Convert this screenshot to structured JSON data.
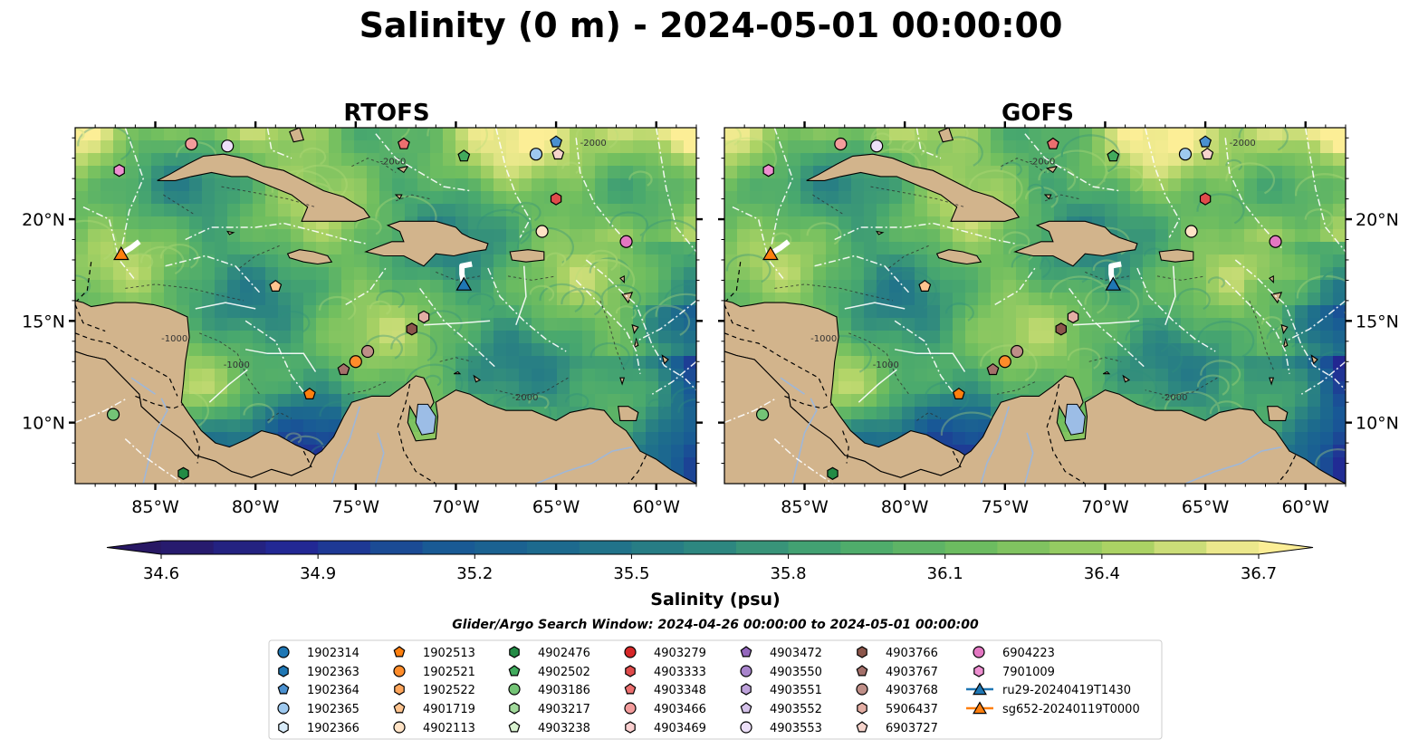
{
  "chart_data": {
    "type": "heatmap",
    "title": "Salinity (0 m) - 2024-05-01 00:00:00",
    "panels": [
      {
        "title": "RTOFS",
        "tone": "rtofs"
      },
      {
        "title": "GOFS",
        "tone": "gofs"
      }
    ],
    "xlim": [
      -89,
      -58
    ],
    "ylim": [
      7,
      24.5
    ],
    "x_ticks": [
      -85,
      -80,
      -75,
      -70,
      -65,
      -60
    ],
    "x_tick_labels": [
      "85°W",
      "80°W",
      "75°W",
      "70°W",
      "65°W",
      "60°W"
    ],
    "y_ticks": [
      10,
      15,
      20
    ],
    "y_tick_labels": [
      "10°N",
      "15°N",
      "20°N"
    ],
    "colorbar": {
      "label": "Salinity (psu)",
      "min": 34.6,
      "max": 36.7,
      "step": 0.1,
      "ticks": [
        34.6,
        34.9,
        35.2,
        35.5,
        35.8,
        36.1,
        36.4,
        36.7
      ],
      "tick_labels": [
        "34.6",
        "34.9",
        "35.2",
        "35.5",
        "35.8",
        "36.1",
        "36.4",
        "36.7"
      ],
      "extend": "both"
    },
    "search_window": "Glider/Argo Search Window: 2024-04-26 00:00:00 to 2024-05-01 00:00:00",
    "floats": [
      {
        "id": "1902314",
        "color": "#1f77b4",
        "marker": "circle"
      },
      {
        "id": "1902363",
        "color": "#1f77b4",
        "marker": "hexagon"
      },
      {
        "id": "1902364",
        "color": "#4a90d0",
        "marker": "pentagon",
        "lon": -65.0,
        "lat": 23.8
      },
      {
        "id": "1902365",
        "color": "#9ec9ef",
        "marker": "circle",
        "lon": -66.0,
        "lat": 23.2
      },
      {
        "id": "1902366",
        "color": "#d9ecfa",
        "marker": "hexagon"
      },
      {
        "id": "1902513",
        "color": "#ff7f0e",
        "marker": "pentagon",
        "lon": -77.3,
        "lat": 11.4
      },
      {
        "id": "1902521",
        "color": "#ff8c2a",
        "marker": "circle",
        "lon": -75.0,
        "lat": 13.0
      },
      {
        "id": "1902522",
        "color": "#ffa65c",
        "marker": "hexagon"
      },
      {
        "id": "4901719",
        "color": "#ffc48f",
        "marker": "pentagon",
        "lon": -79.0,
        "lat": 16.7
      },
      {
        "id": "4902113",
        "color": "#ffe3c6",
        "marker": "circle",
        "lon": -65.7,
        "lat": 19.4
      },
      {
        "id": "4902476",
        "color": "#238b45",
        "marker": "hexagon",
        "lon": -83.6,
        "lat": 7.5
      },
      {
        "id": "4902502",
        "color": "#41ab5d",
        "marker": "pentagon",
        "lon": -69.6,
        "lat": 23.1
      },
      {
        "id": "4903186",
        "color": "#74c476",
        "marker": "circle",
        "lon": -87.1,
        "lat": 10.4
      },
      {
        "id": "4903217",
        "color": "#a1d99b",
        "marker": "hexagon"
      },
      {
        "id": "4903238",
        "color": "#d9f2d0",
        "marker": "pentagon"
      },
      {
        "id": "4903279",
        "color": "#d62728",
        "marker": "circle"
      },
      {
        "id": "4903333",
        "color": "#e04b4b",
        "marker": "hexagon",
        "lon": -65.0,
        "lat": 21.0
      },
      {
        "id": "4903348",
        "color": "#ec6f6f",
        "marker": "pentagon",
        "lon": -72.6,
        "lat": 23.7
      },
      {
        "id": "4903466",
        "color": "#f39c9c",
        "marker": "circle",
        "lon": -83.2,
        "lat": 23.7
      },
      {
        "id": "4903469",
        "color": "#fbd0d0",
        "marker": "hexagon"
      },
      {
        "id": "4903472",
        "color": "#9467bd",
        "marker": "pentagon"
      },
      {
        "id": "4903550",
        "color": "#a884cc",
        "marker": "circle"
      },
      {
        "id": "4903551",
        "color": "#bea2db",
        "marker": "hexagon"
      },
      {
        "id": "4903552",
        "color": "#d5c2ea",
        "marker": "pentagon"
      },
      {
        "id": "4903553",
        "color": "#ecdff8",
        "marker": "circle",
        "lon": -81.4,
        "lat": 23.6
      },
      {
        "id": "4903766",
        "color": "#8c564b",
        "marker": "hexagon",
        "lon": -72.2,
        "lat": 14.6
      },
      {
        "id": "4903767",
        "color": "#a4706a",
        "marker": "pentagon",
        "lon": -75.6,
        "lat": 12.6
      },
      {
        "id": "4903768",
        "color": "#bf8f88",
        "marker": "circle",
        "lon": -74.4,
        "lat": 13.5
      },
      {
        "id": "5906437",
        "color": "#e3aea4",
        "marker": "hexagon",
        "lon": -71.6,
        "lat": 15.2
      },
      {
        "id": "6903727",
        "color": "#f6d4cc",
        "marker": "pentagon",
        "lon": -64.9,
        "lat": 23.2
      },
      {
        "id": "6904223",
        "color": "#e377c2",
        "marker": "circle",
        "lon": -61.5,
        "lat": 18.9
      },
      {
        "id": "7901009",
        "color": "#ee8fd1",
        "marker": "hexagon",
        "lon": -86.8,
        "lat": 22.4
      }
    ],
    "gliders": [
      {
        "id": "ru29-20240419T1430",
        "color": "#1f77b4",
        "lon": -69.6,
        "lat": 16.8,
        "track": [
          [
            -69.6,
            16.8
          ],
          [
            -69.7,
            17.3
          ],
          [
            -69.7,
            17.7
          ],
          [
            -69.2,
            17.8
          ]
        ]
      },
      {
        "id": "sg652-20240119T0000",
        "color": "#ff7f0e",
        "lon": -86.7,
        "lat": 18.3,
        "track": [
          [
            -86.7,
            18.3
          ],
          [
            -86.2,
            18.6
          ],
          [
            -85.8,
            18.9
          ]
        ]
      }
    ],
    "bathy_labels": [
      "-1000",
      "-2000"
    ]
  }
}
